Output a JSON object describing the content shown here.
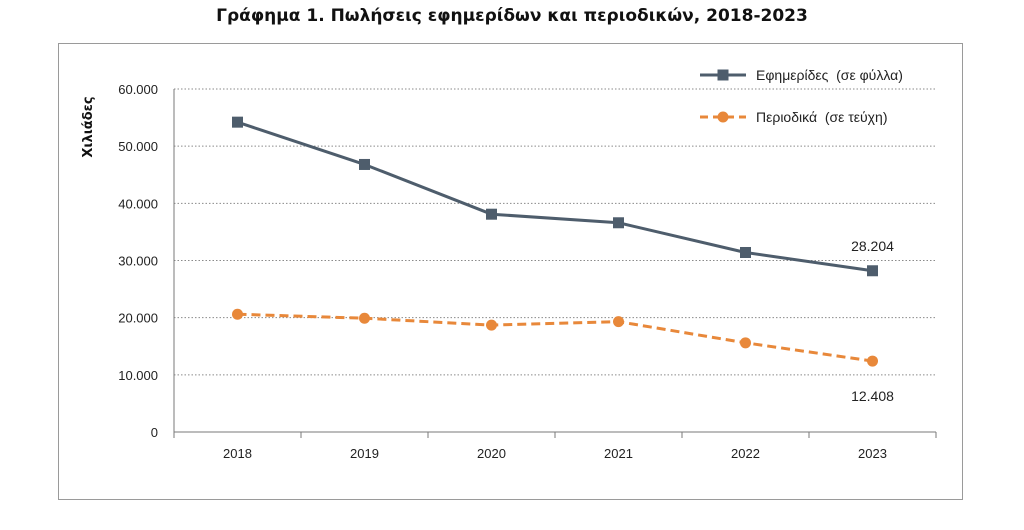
{
  "page_title": "Γράφημα 1. Πωλήσεις εφημερίδων και περιοδικών, 2018-2023",
  "chart_data": {
    "type": "line",
    "title": "Γράφημα 1. Πωλήσεις εφημερίδων και περιοδικών, 2018-2023",
    "xlabel": "",
    "ylabel": "Χιλιάδες",
    "x": [
      "2018",
      "2019",
      "2020",
      "2021",
      "2022",
      "2023"
    ],
    "ylim": [
      0,
      60000
    ],
    "yticks": [
      0,
      10000,
      20000,
      30000,
      40000,
      50000,
      60000
    ],
    "ytick_labels": [
      "0",
      "10.000",
      "20.000",
      "30.000",
      "40.000",
      "50.000",
      "60.000"
    ],
    "grid": "horizontal dotted",
    "legend_position": "top-right",
    "series": [
      {
        "name": "Εφημερίδες  (σε φύλλα)",
        "color": "#4e5d6c",
        "style": "solid",
        "marker": "square",
        "values": [
          54200,
          46800,
          38100,
          36600,
          31400,
          28204
        ]
      },
      {
        "name": "Περιοδικά  (σε τεύχη)",
        "color": "#e8883a",
        "style": "dashed",
        "marker": "circle",
        "values": [
          20600,
          19900,
          18700,
          19300,
          15600,
          12408
        ]
      }
    ],
    "annotations": [
      {
        "series": 0,
        "index": 5,
        "text": "28.204",
        "place": "above"
      },
      {
        "series": 1,
        "index": 5,
        "text": "12.408",
        "place": "below"
      }
    ]
  }
}
